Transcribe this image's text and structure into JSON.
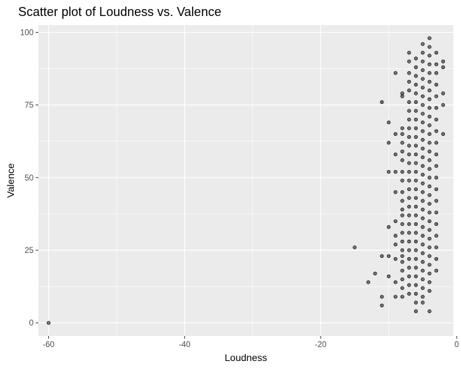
{
  "chart_data": {
    "type": "scatter",
    "title": "Scatter plot of Loudness vs. Valence",
    "xlabel": "Loudness",
    "ylabel": "Valence",
    "xlim": [
      -61.5,
      -0.5
    ],
    "ylim": [
      -4.5,
      102.5
    ],
    "x_ticks": [
      -60,
      -40,
      -20,
      0
    ],
    "x_tick_labels": [
      "-60",
      "-40",
      "-20",
      "0"
    ],
    "y_ticks": [
      0,
      25,
      50,
      75,
      100
    ],
    "y_tick_labels": [
      "0",
      "25",
      "50",
      "75",
      "100"
    ],
    "grid": true,
    "legend": "none",
    "colors": {
      "panel": "#ebebeb",
      "grid": "#ffffff",
      "point_fill": "#000000",
      "point_fill_opacity": 0.5,
      "point_stroke": "#000000",
      "tick_text": "#4d4d4d",
      "tick_mark": "#333333"
    },
    "points": [
      [
        -60,
        0
      ],
      [
        -15,
        26
      ],
      [
        -13,
        14
      ],
      [
        -12,
        17
      ],
      [
        -11,
        76
      ],
      [
        -11,
        9
      ],
      [
        -11,
        6
      ],
      [
        -11,
        23
      ],
      [
        -10,
        69
      ],
      [
        -10,
        62
      ],
      [
        -10,
        52
      ],
      [
        -10,
        33
      ],
      [
        -10,
        23
      ],
      [
        -10,
        16
      ],
      [
        -9,
        86
      ],
      [
        -9,
        65
      ],
      [
        -9,
        58
      ],
      [
        -9,
        52
      ],
      [
        -9,
        45
      ],
      [
        -9,
        35
      ],
      [
        -9,
        30
      ],
      [
        -9,
        27
      ],
      [
        -9,
        22
      ],
      [
        -9,
        14
      ],
      [
        -9,
        9
      ],
      [
        -8,
        79
      ],
      [
        -8,
        78
      ],
      [
        -8,
        67
      ],
      [
        -8,
        65
      ],
      [
        -8,
        62
      ],
      [
        -8,
        59
      ],
      [
        -8,
        56
      ],
      [
        -8,
        52
      ],
      [
        -8,
        49
      ],
      [
        -8,
        45
      ],
      [
        -8,
        42
      ],
      [
        -8,
        39
      ],
      [
        -8,
        37
      ],
      [
        -8,
        34
      ],
      [
        -8,
        31
      ],
      [
        -8,
        28
      ],
      [
        -8,
        25
      ],
      [
        -8,
        23
      ],
      [
        -8,
        21
      ],
      [
        -8,
        18
      ],
      [
        -8,
        15
      ],
      [
        -8,
        12
      ],
      [
        -8,
        9
      ],
      [
        -7,
        93
      ],
      [
        -7,
        90
      ],
      [
        -7,
        86
      ],
      [
        -7,
        83
      ],
      [
        -7,
        80
      ],
      [
        -7,
        76
      ],
      [
        -7,
        73
      ],
      [
        -7,
        70
      ],
      [
        -7,
        67
      ],
      [
        -7,
        64
      ],
      [
        -7,
        61
      ],
      [
        -7,
        58
      ],
      [
        -7,
        55
      ],
      [
        -7,
        52
      ],
      [
        -7,
        49
      ],
      [
        -7,
        46
      ],
      [
        -7,
        43
      ],
      [
        -7,
        40
      ],
      [
        -7,
        37
      ],
      [
        -7,
        34
      ],
      [
        -7,
        31
      ],
      [
        -7,
        28
      ],
      [
        -7,
        25
      ],
      [
        -7,
        22
      ],
      [
        -7,
        19
      ],
      [
        -7,
        16
      ],
      [
        -7,
        13
      ],
      [
        -7,
        10
      ],
      [
        -6,
        91
      ],
      [
        -6,
        88
      ],
      [
        -6,
        85
      ],
      [
        -6,
        82
      ],
      [
        -6,
        79
      ],
      [
        -6,
        76
      ],
      [
        -6,
        73
      ],
      [
        -6,
        70
      ],
      [
        -6,
        67
      ],
      [
        -6,
        64
      ],
      [
        -6,
        61
      ],
      [
        -6,
        58
      ],
      [
        -6,
        55
      ],
      [
        -6,
        52
      ],
      [
        -6,
        49
      ],
      [
        -6,
        46
      ],
      [
        -6,
        43
      ],
      [
        -6,
        40
      ],
      [
        -6,
        37
      ],
      [
        -6,
        34
      ],
      [
        -6,
        31
      ],
      [
        -6,
        28
      ],
      [
        -6,
        25
      ],
      [
        -6,
        22
      ],
      [
        -6,
        19
      ],
      [
        -6,
        16
      ],
      [
        -6,
        13
      ],
      [
        -6,
        10
      ],
      [
        -6,
        7
      ],
      [
        -6,
        4
      ],
      [
        -5,
        96
      ],
      [
        -5,
        93
      ],
      [
        -5,
        90
      ],
      [
        -5,
        87
      ],
      [
        -5,
        84
      ],
      [
        -5,
        81
      ],
      [
        -5,
        78
      ],
      [
        -5,
        75
      ],
      [
        -5,
        72
      ],
      [
        -5,
        69
      ],
      [
        -5,
        66
      ],
      [
        -5,
        63
      ],
      [
        -5,
        60
      ],
      [
        -5,
        57
      ],
      [
        -5,
        54
      ],
      [
        -5,
        51
      ],
      [
        -5,
        48
      ],
      [
        -5,
        45
      ],
      [
        -5,
        42
      ],
      [
        -5,
        39
      ],
      [
        -5,
        36
      ],
      [
        -5,
        33
      ],
      [
        -5,
        30
      ],
      [
        -5,
        27
      ],
      [
        -5,
        24
      ],
      [
        -5,
        21
      ],
      [
        -5,
        18
      ],
      [
        -5,
        15
      ],
      [
        -5,
        12
      ],
      [
        -5,
        9
      ],
      [
        -5,
        7
      ],
      [
        -4,
        98
      ],
      [
        -4,
        95
      ],
      [
        -4,
        92
      ],
      [
        -4,
        89
      ],
      [
        -4,
        86
      ],
      [
        -4,
        83
      ],
      [
        -4,
        80
      ],
      [
        -4,
        77
      ],
      [
        -4,
        74
      ],
      [
        -4,
        71
      ],
      [
        -4,
        68
      ],
      [
        -4,
        65
      ],
      [
        -4,
        62
      ],
      [
        -4,
        59
      ],
      [
        -4,
        56
      ],
      [
        -4,
        53
      ],
      [
        -4,
        50
      ],
      [
        -4,
        47
      ],
      [
        -4,
        44
      ],
      [
        -4,
        41
      ],
      [
        -4,
        38
      ],
      [
        -4,
        35
      ],
      [
        -4,
        32
      ],
      [
        -4,
        29
      ],
      [
        -4,
        26
      ],
      [
        -4,
        23
      ],
      [
        -4,
        20
      ],
      [
        -4,
        17
      ],
      [
        -4,
        14
      ],
      [
        -4,
        11
      ],
      [
        -4,
        4
      ],
      [
        -3,
        93
      ],
      [
        -3,
        89
      ],
      [
        -3,
        86
      ],
      [
        -3,
        82
      ],
      [
        -3,
        78
      ],
      [
        -3,
        74
      ],
      [
        -3,
        70
      ],
      [
        -3,
        66
      ],
      [
        -3,
        62
      ],
      [
        -3,
        58
      ],
      [
        -3,
        54
      ],
      [
        -3,
        50
      ],
      [
        -3,
        46
      ],
      [
        -3,
        42
      ],
      [
        -3,
        38
      ],
      [
        -3,
        34
      ],
      [
        -3,
        30
      ],
      [
        -3,
        26
      ],
      [
        -3,
        22
      ],
      [
        -3,
        18
      ],
      [
        -2,
        90
      ],
      [
        -2,
        88
      ],
      [
        -2,
        79
      ],
      [
        -2,
        75
      ],
      [
        -2,
        65
      ]
    ]
  }
}
